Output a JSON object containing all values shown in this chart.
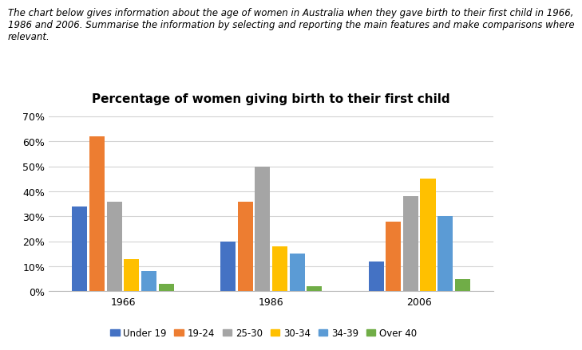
{
  "title": "Percentage of women giving birth to their first child",
  "header_line1": "The chart below gives information about the age of women in Australia when they gave birth to their first child in 1966,",
  "header_line2": "1986 and 2006. Summarise the information by selecting and reporting the main features and make comparisons where",
  "header_line3": "relevant.",
  "years": [
    "1966",
    "1986",
    "2006"
  ],
  "categories": [
    "Under 19",
    "19-24",
    "25-30",
    "30-34",
    "34-39",
    "Over 40"
  ],
  "colors": [
    "#4472C4",
    "#ED7D31",
    "#A5A5A5",
    "#FFC000",
    "#5B9BD5",
    "#70AD47"
  ],
  "data": {
    "1966": [
      0.34,
      0.62,
      0.36,
      0.13,
      0.08,
      0.03
    ],
    "1986": [
      0.2,
      0.36,
      0.5,
      0.18,
      0.15,
      0.02
    ],
    "2006": [
      0.12,
      0.28,
      0.38,
      0.45,
      0.3,
      0.05
    ]
  },
  "ylim": [
    0,
    0.72
  ],
  "yticks": [
    0.0,
    0.1,
    0.2,
    0.3,
    0.4,
    0.5,
    0.6,
    0.7
  ],
  "ytick_labels": [
    "0%",
    "10%",
    "20%",
    "30%",
    "40%",
    "50%",
    "60%",
    "70%"
  ],
  "background_color": "#FFFFFF",
  "grid_color": "#D3D3D3",
  "title_fontsize": 11,
  "header_fontsize": 8.5,
  "legend_fontsize": 8.5,
  "axis_tick_fontsize": 9
}
